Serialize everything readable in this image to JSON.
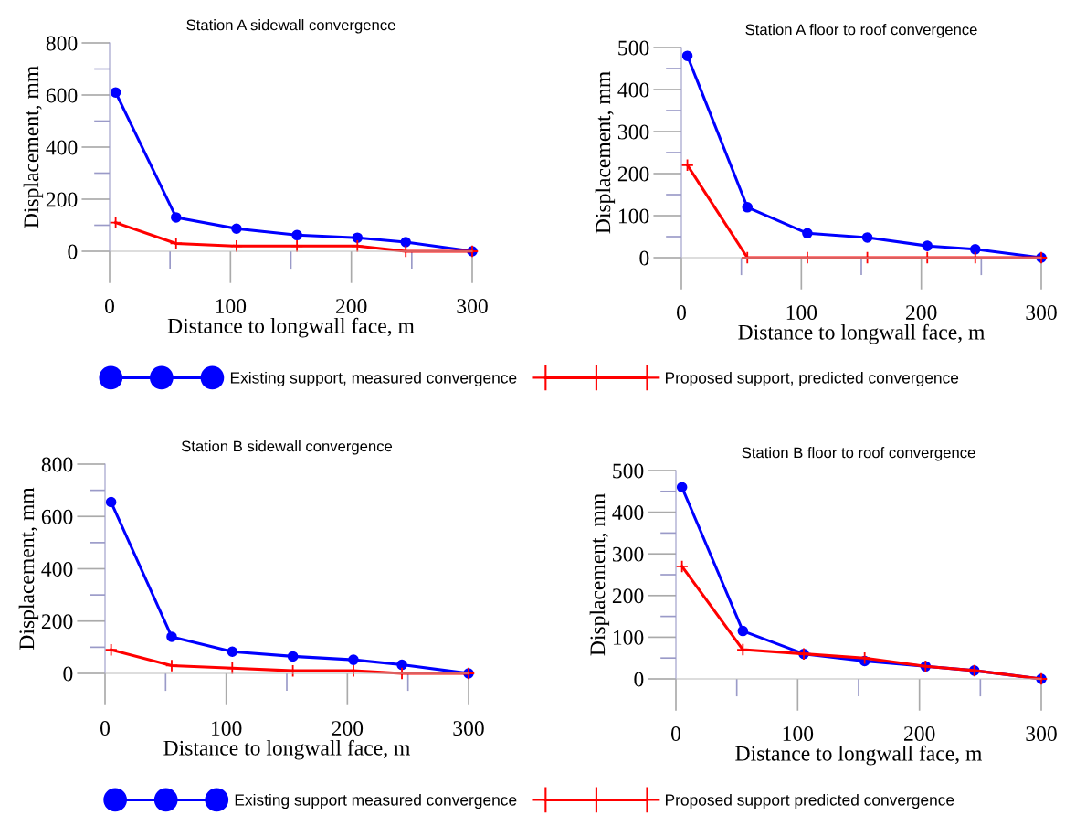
{
  "chart_data": [
    {
      "type": "line",
      "title": "Station A sidewall convergence",
      "xlabel": "Distance to longwall face, m",
      "ylabel": "Displacement, mm",
      "x": [
        5,
        55,
        105,
        155,
        205,
        245,
        300
      ],
      "xlim": [
        0,
        300
      ],
      "ylim": [
        0,
        800
      ],
      "xticks": [
        0,
        100,
        200,
        300
      ],
      "yticks": [
        0,
        200,
        400,
        600,
        800
      ],
      "grid": false,
      "legend": "bottom",
      "line_style": "solid",
      "series": [
        {
          "name": "Existing support, measured convergence",
          "color": "#0000ff",
          "marker": "circle",
          "values": [
            610,
            130,
            87,
            62,
            52,
            35,
            0
          ]
        },
        {
          "name": "Proposed support, predicted convergence",
          "color": "#ff0000",
          "marker": "cross",
          "values": [
            110,
            30,
            20,
            20,
            20,
            0,
            0
          ]
        }
      ]
    },
    {
      "type": "line",
      "title": "Station A floor to roof convergence",
      "xlabel": "Distance to longwall face, m",
      "ylabel": "Displacement, mm",
      "x": [
        5,
        55,
        105,
        155,
        205,
        245,
        300
      ],
      "xlim": [
        0,
        300
      ],
      "ylim": [
        0,
        500
      ],
      "xticks": [
        0,
        100,
        200,
        300
      ],
      "yticks": [
        0,
        100,
        200,
        300,
        400,
        500
      ],
      "grid": false,
      "line_style": "solid",
      "series": [
        {
          "color": "#0000ff",
          "marker": "circle",
          "values": [
            480,
            120,
            58,
            48,
            28,
            20,
            0
          ]
        },
        {
          "color": "#ff0000",
          "marker": "cross",
          "values": [
            220,
            0,
            0,
            0,
            0,
            0,
            0
          ]
        }
      ]
    },
    {
      "type": "line",
      "title": "Station B sidewall convergence",
      "xlabel": "Distance to longwall face, m",
      "ylabel": "Displacement, mm",
      "x": [
        5,
        55,
        105,
        155,
        205,
        245,
        300
      ],
      "xlim": [
        0,
        300
      ],
      "ylim": [
        0,
        800
      ],
      "xticks": [
        0,
        100,
        200,
        300
      ],
      "yticks": [
        0,
        200,
        400,
        600,
        800
      ],
      "grid": false,
      "legend": "bottom",
      "line_style": "solid",
      "series": [
        {
          "name": "Existing support measured convergence",
          "color": "#0000ff",
          "marker": "circle",
          "values": [
            655,
            140,
            83,
            65,
            52,
            33,
            0
          ]
        },
        {
          "name": "Proposed support predicted convergence",
          "color": "#ff0000",
          "marker": "cross",
          "values": [
            90,
            30,
            20,
            10,
            10,
            0,
            0
          ]
        }
      ]
    },
    {
      "type": "line",
      "title": "Station B floor to roof convergence",
      "xlabel": "Distance to longwall face, m",
      "ylabel": "Displacement, mm",
      "x": [
        5,
        55,
        105,
        155,
        205,
        245,
        300
      ],
      "xlim": [
        0,
        300
      ],
      "ylim": [
        0,
        500
      ],
      "xticks": [
        0,
        100,
        200,
        300
      ],
      "yticks": [
        0,
        100,
        200,
        300,
        400,
        500
      ],
      "grid": false,
      "line_style": "solid",
      "series": [
        {
          "color": "#0000ff",
          "marker": "circle",
          "values": [
            460,
            115,
            60,
            43,
            30,
            20,
            0
          ]
        },
        {
          "color": "#ff0000",
          "marker": "cross",
          "values": [
            270,
            70,
            60,
            50,
            30,
            20,
            0
          ]
        }
      ]
    }
  ]
}
